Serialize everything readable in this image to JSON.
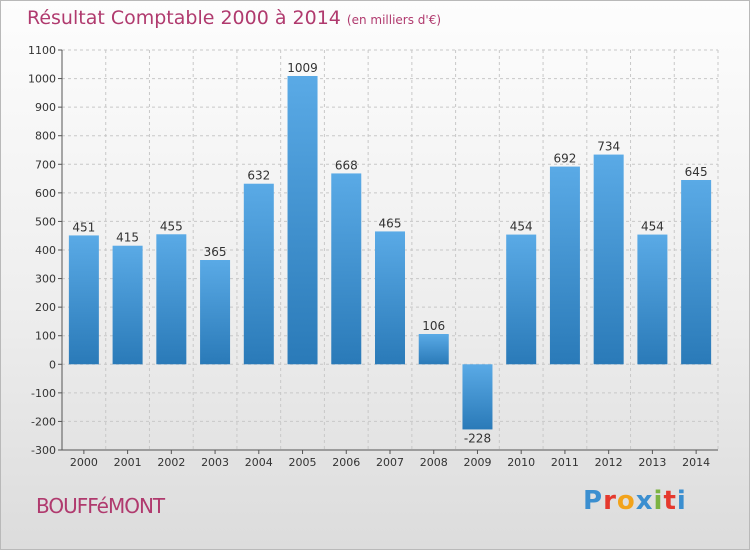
{
  "header": {
    "title": "Résultat Comptable 2000 à 2014",
    "subtitle": "(en milliers d'€)"
  },
  "footer": {
    "place": "BOUFFéMONT",
    "brand": "Proxiti",
    "brand_letters": [
      "P",
      "r",
      "o",
      "x",
      "i",
      "t",
      "i"
    ],
    "brand_colors": [
      "#3b8fd0",
      "#e5392d",
      "#f2a31b",
      "#3b8fd0",
      "#7cb342",
      "#e5392d",
      "#3b8fd0"
    ]
  },
  "chart_data": {
    "type": "bar",
    "title": "Résultat Comptable 2000 à 2014",
    "xlabel": "",
    "ylabel": "",
    "categories": [
      "2000",
      "2001",
      "2002",
      "2003",
      "2004",
      "2005",
      "2006",
      "2007",
      "2008",
      "2009",
      "2010",
      "2011",
      "2012",
      "2013",
      "2014"
    ],
    "values": [
      451,
      415,
      455,
      365,
      632,
      1009,
      668,
      465,
      106,
      -228,
      454,
      692,
      734,
      454,
      645
    ],
    "ylim": [
      -300,
      1100
    ],
    "yticks": [
      -300,
      -200,
      -100,
      0,
      100,
      200,
      300,
      400,
      500,
      600,
      700,
      800,
      900,
      1000,
      1100
    ],
    "grid": true,
    "bar_color_top": "#5aaae6",
    "bar_color_bottom": "#2a7ab8"
  }
}
